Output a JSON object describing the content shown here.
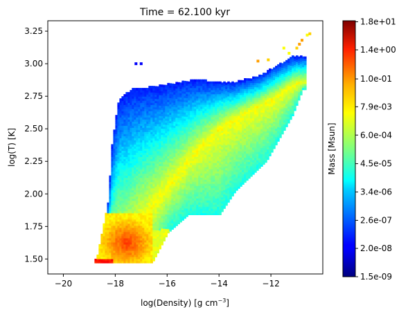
{
  "chart_data": {
    "type": "heatmap",
    "title": "Time = 62.100 kyr",
    "xlabel": "log(Density) [g cm",
    "xlabel_sup": "−3",
    "xlabel_end": "]",
    "ylabel": "log(T) [K]",
    "xlim": [
      -20.6,
      -10.0
    ],
    "ylim": [
      1.385,
      3.33
    ],
    "xticks": [
      -20,
      -18,
      -16,
      -14,
      -12
    ],
    "xtick_labels": [
      "−20",
      "−18",
      "−16",
      "−14",
      "−12"
    ],
    "yticks": [
      1.5,
      1.75,
      2.0,
      2.25,
      2.5,
      2.75,
      3.0,
      3.25
    ],
    "ytick_labels": [
      "1.50",
      "1.75",
      "2.00",
      "2.25",
      "2.50",
      "2.75",
      "3.00",
      "3.25"
    ],
    "colormap": "jet",
    "colorbar": {
      "label": "Mass [Msun]",
      "tick_labels": [
        "1.5e-09",
        "2.0e-08",
        "2.6e-07",
        "3.4e-06",
        "4.5e-05",
        "6.0e-04",
        "7.9e-03",
        "1.0e-01",
        "1.4e+00",
        "1.8e+01"
      ],
      "log10_range": [
        -8.82,
        1.3
      ]
    },
    "regions": [
      {
        "name": "hot-diffuse-band",
        "colors": [
          "#0000ff",
          "#0050ff",
          "#00a0ff"
        ]
      },
      {
        "name": "upper-ridge",
        "colors": [
          "#00ffb0",
          "#a0ff50",
          "#e0ff20"
        ]
      },
      {
        "name": "dense-cold-core",
        "colors": [
          "#ffd000",
          "#ff8000",
          "#e02000"
        ]
      }
    ]
  }
}
